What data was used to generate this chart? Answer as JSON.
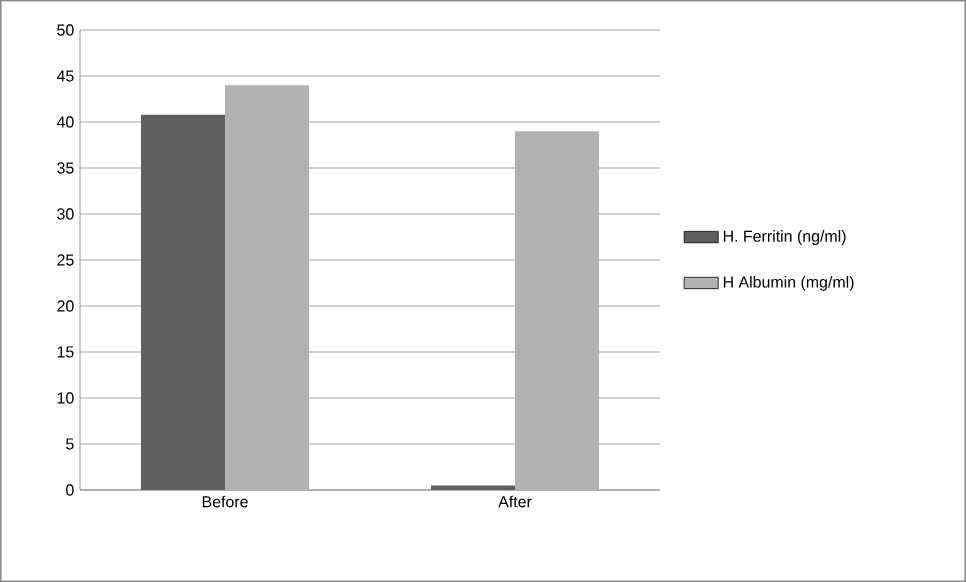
{
  "chart_data": {
    "type": "bar",
    "categories": [
      "Before",
      "After"
    ],
    "series": [
      {
        "name": "H. Ferritin (ng/ml)",
        "color": "#5f5f5f",
        "values": [
          40.8,
          0.5
        ]
      },
      {
        "name": "H Albumin  (mg/ml)",
        "color": "#b2b2b2",
        "values": [
          44,
          39
        ]
      }
    ],
    "ylim": [
      0,
      50
    ],
    "yticks": [
      0,
      5,
      10,
      15,
      20,
      25,
      30,
      35,
      40,
      45,
      50
    ],
    "grid": "y",
    "legend": "right"
  }
}
